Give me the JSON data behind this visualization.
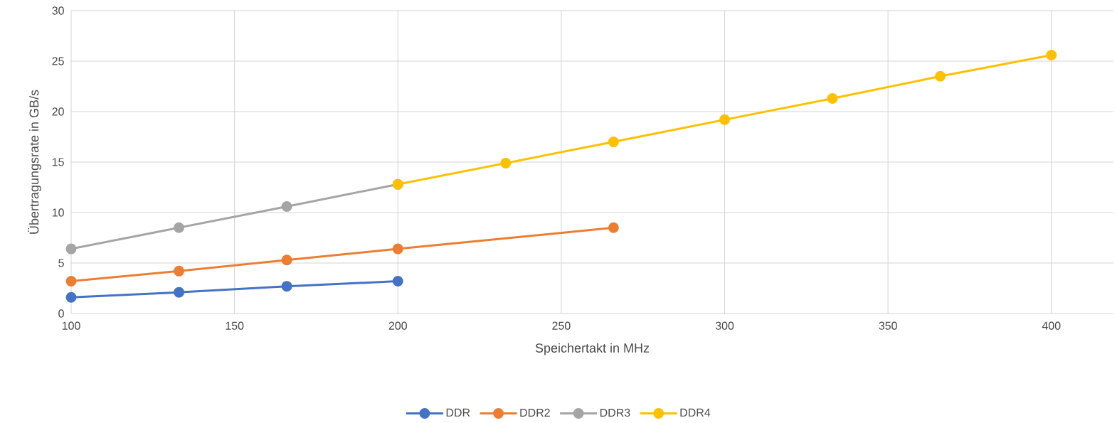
{
  "chart_data": {
    "type": "line",
    "xlabel": "Speichertakt in MHz",
    "ylabel": "Übertragungsrate in GB/s",
    "xlim": [
      100,
      419
    ],
    "xticks": [
      100,
      150,
      200,
      250,
      300,
      350,
      400
    ],
    "ylim": [
      0,
      30
    ],
    "yticks": [
      0,
      5,
      10,
      15,
      20,
      25,
      30
    ],
    "grid": true,
    "legend": "bottom",
    "marker": "circle",
    "line_style": "solid",
    "series": [
      {
        "name": "DDR",
        "color": "#4472c4",
        "x": [
          100,
          133,
          166,
          200
        ],
        "values": [
          1.6,
          2.1,
          2.7,
          3.2
        ]
      },
      {
        "name": "DDR2",
        "color": "#ed7d31",
        "x": [
          100,
          133,
          166,
          200,
          266
        ],
        "values": [
          3.2,
          4.2,
          5.3,
          6.4,
          8.5
        ]
      },
      {
        "name": "DDR3",
        "color": "#a5a5a5",
        "x": [
          100,
          133,
          166,
          200
        ],
        "values": [
          6.4,
          8.5,
          10.6,
          12.8
        ]
      },
      {
        "name": "DDR4",
        "color": "#ffc000",
        "x": [
          200,
          233,
          266,
          300,
          333,
          366,
          400
        ],
        "values": [
          12.8,
          14.9,
          17,
          19.2,
          21.3,
          23.5,
          25.6
        ]
      }
    ]
  }
}
